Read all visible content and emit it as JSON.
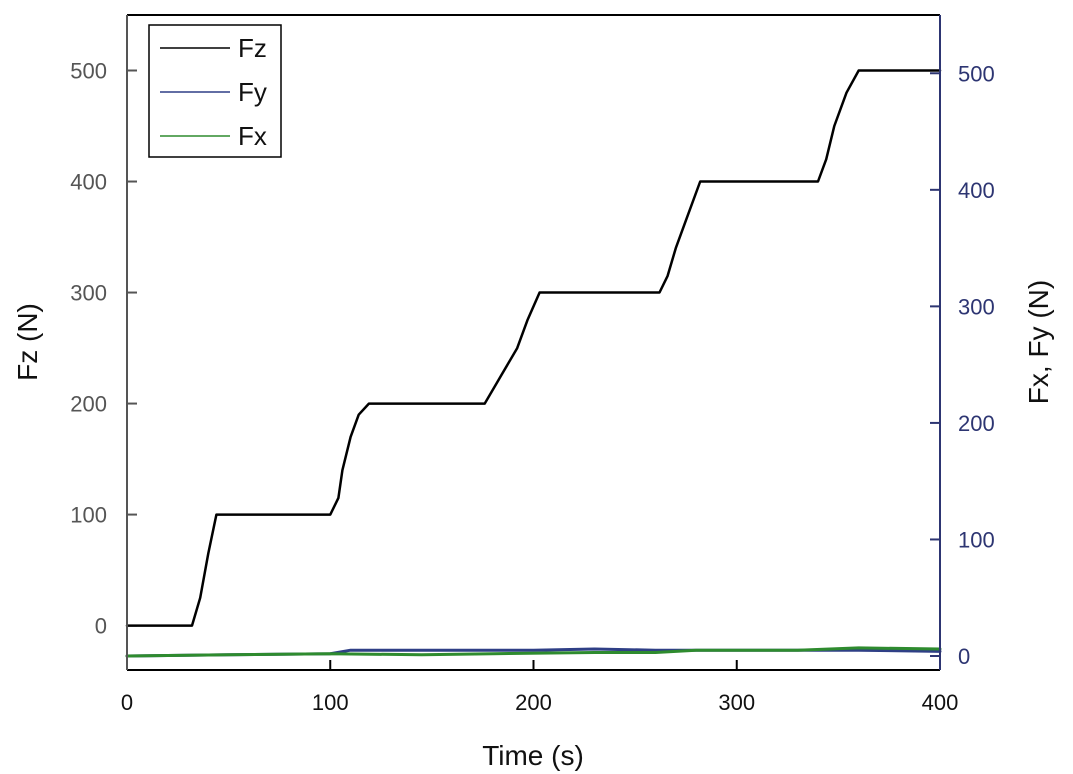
{
  "chart_data": {
    "type": "line",
    "xlabel": "Time (s)",
    "ylabel": "Fz (N)",
    "y2label": "Fx, Fy (N)",
    "xlim": [
      0,
      400
    ],
    "ylim": [
      -40,
      550
    ],
    "y2lim": [
      -12,
      550
    ],
    "x_ticks": [
      0,
      100,
      200,
      300,
      400
    ],
    "y_ticks": [
      0,
      100,
      200,
      300,
      400,
      500
    ],
    "y2_ticks": [
      0,
      100,
      200,
      300,
      400,
      500
    ],
    "grid": false,
    "legend_position": "top-left",
    "colors": {
      "Fz": "#000000",
      "Fy": "#2f3f86",
      "Fx": "#2e8b2e",
      "left_axis": "#555555",
      "right_axis": "#2d3572"
    },
    "series": [
      {
        "name": "Fz",
        "axis": "left",
        "x": [
          0,
          32,
          36,
          40,
          44,
          100,
          104,
          106,
          110,
          114,
          119,
          176,
          184,
          192,
          197,
          203,
          262,
          266,
          270,
          275,
          282,
          340,
          344,
          348,
          354,
          360,
          400
        ],
        "y": [
          0,
          0,
          25,
          65,
          100,
          100,
          115,
          140,
          170,
          190,
          200,
          200,
          225,
          250,
          275,
          300,
          300,
          315,
          340,
          365,
          400,
          400,
          420,
          450,
          480,
          500,
          500
        ]
      },
      {
        "name": "Fy",
        "axis": "right",
        "x": [
          0,
          50,
          100,
          110,
          130,
          200,
          230,
          260,
          300,
          340,
          360,
          400
        ],
        "y": [
          0,
          1,
          2,
          5,
          5,
          5,
          6,
          5,
          5,
          5,
          5,
          4
        ]
      },
      {
        "name": "Fx",
        "axis": "right",
        "x": [
          0,
          50,
          100,
          145,
          180,
          230,
          260,
          280,
          300,
          330,
          360,
          400
        ],
        "y": [
          0,
          1,
          2,
          1,
          2,
          3,
          3,
          5,
          5,
          5,
          7,
          6
        ]
      }
    ]
  }
}
